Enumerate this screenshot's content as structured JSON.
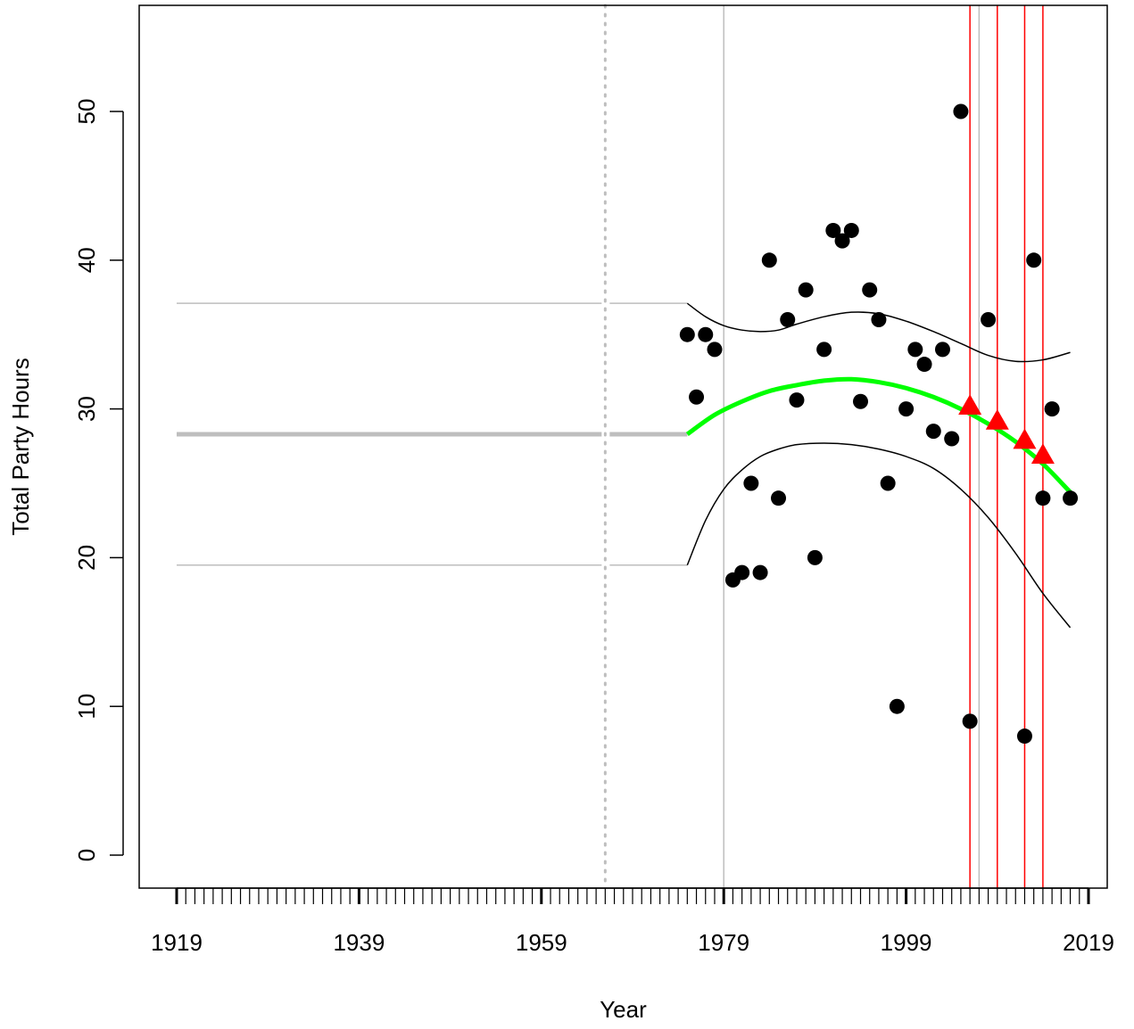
{
  "chart_data": {
    "type": "scatter",
    "xlabel": "Year",
    "ylabel": "Total Party Hours",
    "xlim": [
      1919,
      2019
    ],
    "ylim": [
      0,
      55
    ],
    "x_tick_labels": [
      "1919",
      "1939",
      "1959",
      "1979",
      "1999",
      "2019"
    ],
    "y_tick_labels": [
      "0",
      "10",
      "20",
      "30",
      "40",
      "50"
    ],
    "observations": {
      "x": [
        1975,
        1976,
        1977,
        1978,
        1980,
        1981,
        1982,
        1983,
        1984,
        1985,
        1986,
        1987,
        1988,
        1989,
        1990,
        1991,
        1992,
        1993,
        1994,
        1995,
        1996,
        1997,
        1998,
        1999,
        2000,
        2001,
        2002,
        2003,
        2004,
        2005,
        2006,
        2008,
        2012,
        2013,
        2014,
        2015,
        2017
      ],
      "y": [
        35,
        30.8,
        35,
        34,
        18.5,
        19,
        25,
        19,
        40,
        24,
        36,
        30.6,
        38,
        20,
        34,
        42,
        41.3,
        42,
        30.5,
        38,
        36,
        25,
        10,
        30,
        34,
        33,
        28.5,
        34,
        28,
        50,
        9,
        36,
        8,
        40,
        24,
        30,
        24
      ]
    },
    "trend": {
      "x": [
        1975,
        1978,
        1981,
        1984,
        1987,
        1990,
        1993,
        1996,
        1999,
        2002,
        2005,
        2008,
        2011,
        2014,
        2017
      ],
      "y": [
        28.3,
        29.6,
        30.5,
        31.2,
        31.6,
        31.9,
        32,
        31.8,
        31.4,
        30.8,
        30,
        29,
        27.8,
        26.3,
        24.4
      ]
    },
    "upper_band": {
      "x": [
        1975,
        1977,
        1979,
        1981,
        1983,
        1985,
        1987,
        1990,
        1993,
        1996,
        1999,
        2002,
        2005,
        2008,
        2011,
        2014,
        2017
      ],
      "y": [
        37.1,
        36.2,
        35.6,
        35.3,
        35.2,
        35.3,
        35.7,
        36.2,
        36.5,
        36.4,
        35.9,
        35.2,
        34.4,
        33.6,
        33.2,
        33.3,
        33.8
      ]
    },
    "lower_band": {
      "x": [
        1975,
        1977,
        1979,
        1981,
        1983,
        1985,
        1987,
        1990,
        1993,
        1996,
        1999,
        2002,
        2005,
        2008,
        2011,
        2014,
        2017
      ],
      "y": [
        19.5,
        22.5,
        24.6,
        25.9,
        26.8,
        27.3,
        27.6,
        27.7,
        27.6,
        27.3,
        26.8,
        26,
        24.6,
        22.7,
        20.3,
        17.6,
        15.3
      ]
    },
    "baseline": {
      "x": [
        1919,
        1975
      ],
      "mean": 28.3,
      "upper": 37.1,
      "lower": 19.5
    },
    "dotted_vline_x": 1966,
    "gray_vlines_x": [
      1979,
      2007
    ],
    "red_vlines_x": [
      2006,
      2009,
      2012,
      2014
    ],
    "red_markers": {
      "x": [
        2006,
        2009,
        2012,
        2014
      ],
      "y": [
        30.2,
        29.2,
        27.9,
        26.9
      ]
    },
    "colors": {
      "points": "#000000",
      "trend": "#00ff00",
      "band": "#000000",
      "baseline": "#bebebe",
      "gray_vline": "#bebebe",
      "red": "#ff0000",
      "frame": "#000000"
    },
    "grid": false,
    "legend": "none"
  }
}
